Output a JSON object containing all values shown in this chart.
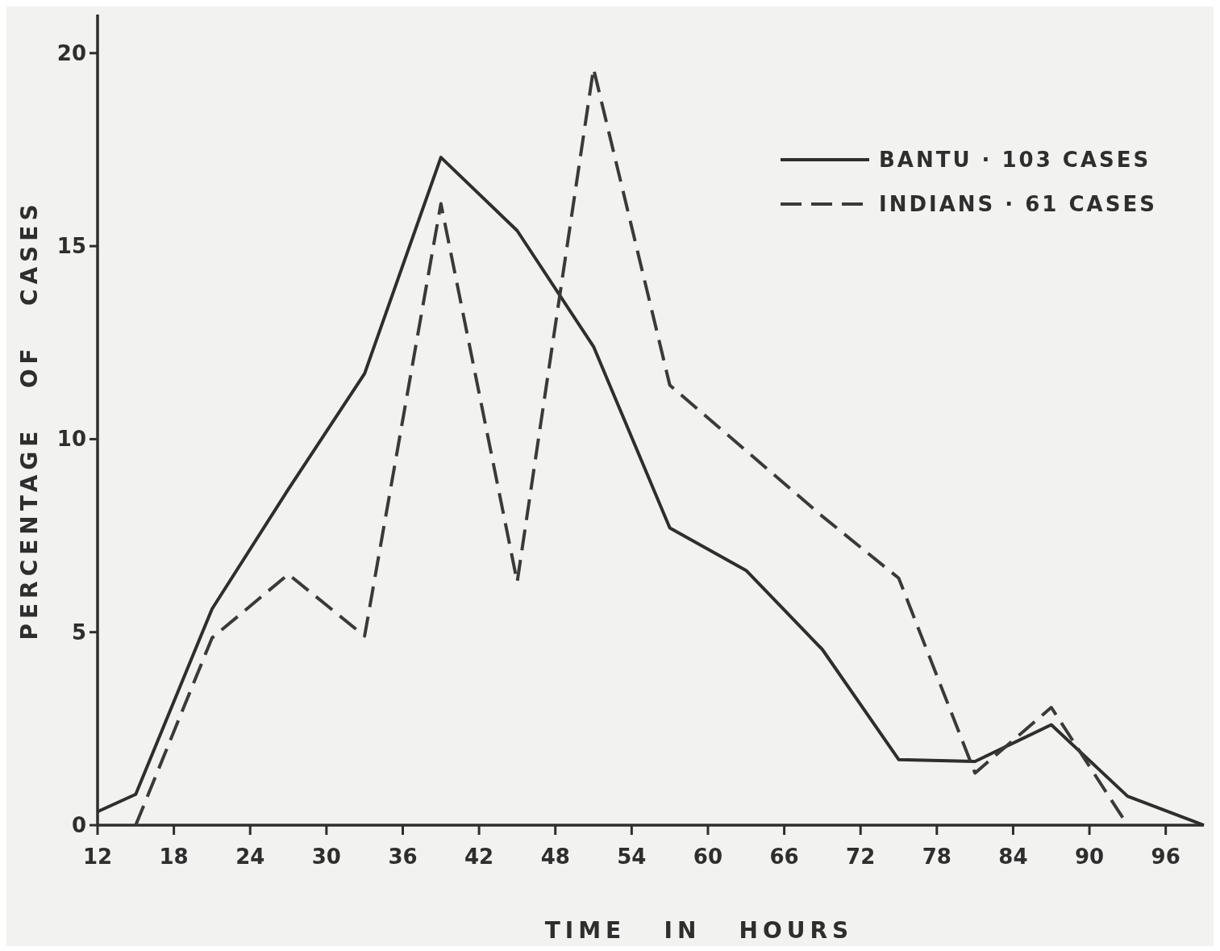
{
  "chart_data": {
    "type": "line",
    "xlabel": "TIME   IN   HOURS",
    "ylabel": "PERCENTAGE   OF   CASES",
    "xlim": [
      12,
      99
    ],
    "ylim": [
      0,
      21
    ],
    "xticks": [
      12,
      18,
      24,
      30,
      36,
      42,
      48,
      54,
      60,
      66,
      72,
      78,
      84,
      90,
      96
    ],
    "yticks": [
      0,
      5,
      10,
      15,
      20
    ],
    "grid": false,
    "legend": "top right",
    "marker": "none",
    "series": [
      {
        "name": "BANTU · 103 CASES",
        "color": "#2e2e2e",
        "line_style": "solid",
        "x": [
          12,
          15,
          21,
          27,
          33,
          39,
          45,
          51,
          57,
          63,
          69,
          75,
          81,
          87,
          93,
          99
        ],
        "values": [
          0.35,
          0.8,
          5.6,
          8.7,
          11.7,
          17.3,
          15.4,
          12.4,
          7.7,
          6.6,
          4.55,
          1.7,
          1.65,
          2.6,
          0.75,
          0
        ]
      },
      {
        "name": "INDIANS · 61 CASES",
        "color": "#3a3a3a",
        "line_style": "dashed",
        "x": [
          15,
          21,
          27,
          33,
          39,
          45,
          51,
          57,
          63,
          69,
          75,
          81,
          87,
          93
        ],
        "values": [
          0,
          4.85,
          6.5,
          4.9,
          16.1,
          6.3,
          19.6,
          11.4,
          9.7,
          8.0,
          6.4,
          1.35,
          3.05,
          0
        ]
      }
    ]
  }
}
